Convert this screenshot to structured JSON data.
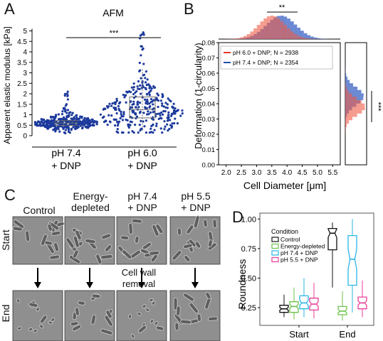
{
  "panels": {
    "A": {
      "letter": "A",
      "title": "AFM",
      "ylabel": "Apparent elastic modulus [kPa]",
      "yticks": [
        "0",
        "0.5",
        "1",
        "1.5",
        "2",
        "2.5",
        "3",
        "3.5",
        "4",
        "4.5",
        "5"
      ],
      "sig": "***",
      "groups": [
        {
          "label1": "pH 7.4",
          "label2": "+ DNP"
        },
        {
          "label1": "pH 6.0",
          "label2": "+ DNP"
        }
      ]
    },
    "B": {
      "letter": "B",
      "sig_top": "**",
      "sig_right": "***",
      "ylabel": "Deformation (1-circularity)",
      "xlabel": "Cell Diameter [μm]",
      "xticks": [
        "2.0",
        "2.5",
        "3.0",
        "3.5",
        "4.0",
        "4.5",
        "5.0",
        "5.5"
      ],
      "yticks": [
        "0.00",
        "0.01",
        "0.02",
        "0.03",
        "0.04",
        "0.05",
        "0.06",
        "0.07",
        "0.08"
      ],
      "legend": [
        {
          "label": "pH 6.0 + DNP; N = 2938",
          "color": "#e8392c"
        },
        {
          "label": "pH 7.4 + DNP; N = 2354",
          "color": "#1f4fa8"
        }
      ]
    },
    "C": {
      "letter": "C",
      "columns": [
        {
          "line1": "Control",
          "line2": ""
        },
        {
          "line1": "Energy-",
          "line2": "depleted"
        },
        {
          "line1": "pH 7.4",
          "line2": "+ DNP"
        },
        {
          "line1": "pH 5.5",
          "line2": "+ DNP"
        }
      ],
      "rows": [
        "Start",
        "End"
      ],
      "note_line1": "Cell wall",
      "note_line2": "removal"
    },
    "D": {
      "letter": "D",
      "ylabel": "Roundness",
      "yticks": [
        "0.25",
        "0.50",
        "0.75",
        "1.00"
      ],
      "xticks": [
        "Start",
        "End"
      ],
      "legend_title": "Condition",
      "legend": [
        {
          "label": "Control",
          "color": "#111111"
        },
        {
          "label": "Energy-depleted",
          "color": "#6cc24a"
        },
        {
          "label": "pH 7.4 + DNP",
          "color": "#29b6e6"
        },
        {
          "label": "pH 5.5 + DNP",
          "color": "#e83e9a"
        }
      ]
    }
  },
  "chart_data": [
    {
      "type": "box",
      "panel": "D",
      "categories": [
        "Start",
        "End"
      ],
      "series": [
        {
          "name": "Control",
          "color": "#111111",
          "Start": {
            "min": 0.17,
            "q1": 0.21,
            "median": 0.24,
            "q3": 0.27,
            "max": 0.36
          },
          "End": {
            "min": 0.42,
            "q1": 0.74,
            "median": 0.88,
            "q3": 0.92,
            "max": 0.97
          }
        },
        {
          "name": "Energy-depleted",
          "color": "#6cc24a",
          "Start": {
            "min": 0.15,
            "q1": 0.21,
            "median": 0.26,
            "q3": 0.3,
            "max": 0.42
          },
          "End": {
            "min": 0.14,
            "q1": 0.19,
            "median": 0.22,
            "q3": 0.26,
            "max": 0.39
          }
        },
        {
          "name": "pH 7.4 + DNP",
          "color": "#29b6e6",
          "Start": {
            "min": 0.17,
            "q1": 0.24,
            "median": 0.29,
            "q3": 0.35,
            "max": 0.5
          },
          "End": {
            "min": 0.21,
            "q1": 0.44,
            "median": 0.66,
            "q3": 0.86,
            "max": 1.0
          }
        },
        {
          "name": "pH 5.5 + DNP",
          "color": "#e83e9a",
          "Start": {
            "min": 0.16,
            "q1": 0.23,
            "median": 0.28,
            "q3": 0.33,
            "max": 0.46
          },
          "End": {
            "min": 0.17,
            "q1": 0.24,
            "median": 0.29,
            "q3": 0.34,
            "max": 0.48
          }
        }
      ],
      "ylim": [
        0.1,
        1.05
      ]
    }
  ]
}
